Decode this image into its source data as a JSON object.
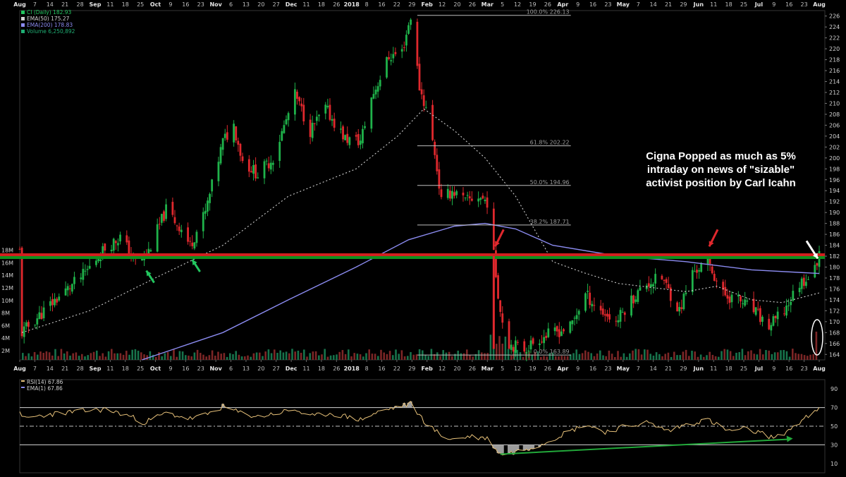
{
  "chart_data": [
    {
      "type": "candlestick",
      "panel": "price",
      "title": "CI (Daily) 182.93",
      "legend": [
        {
          "text": "CI (Daily) 182.93",
          "color": "#22c55e",
          "icon": "candle-icon"
        },
        {
          "text": "EMA(50) 175.27",
          "color": "#cfcfcf",
          "icon": "dotted-line-icon"
        },
        {
          "text": "EMA(200) 178.83",
          "color": "#8b8bf0",
          "icon": "line-icon"
        },
        {
          "text": "Volume 6,250,892",
          "color": "#1fae73",
          "icon": "bar-icon"
        }
      ],
      "legend_position": "top-left",
      "x_axis_labels": [
        "Aug",
        "7",
        "14",
        "21",
        "28",
        "Sep",
        "11",
        "18",
        "25",
        "Oct",
        "9",
        "16",
        "23",
        "Nov",
        "6",
        "13",
        "20",
        "27",
        "Dec",
        "11",
        "18",
        "26",
        "2018",
        "8",
        "16",
        "22",
        "29",
        "Feb",
        "12",
        "20",
        "26",
        "Mar",
        "5",
        "12",
        "19",
        "26",
        "Apr",
        "9",
        "16",
        "23",
        "May",
        "7",
        "14",
        "21",
        "29",
        "Jun",
        "11",
        "18",
        "25",
        "Jul",
        "9",
        "16",
        "23",
        "Aug"
      ],
      "x_range": [
        "2017-07-31",
        "2018-08-01"
      ],
      "y_axis": {
        "min": 163,
        "max": 227,
        "ticks": [
          164,
          166,
          168,
          170,
          172,
          174,
          176,
          178,
          180,
          182,
          184,
          186,
          188,
          190,
          192,
          194,
          196,
          198,
          200,
          202,
          204,
          206,
          208,
          210,
          212,
          214,
          216,
          218,
          220,
          222,
          224,
          226
        ],
        "position": "right"
      },
      "volume_axis": {
        "ticks": [
          "2M",
          "4M",
          "6M",
          "8M",
          "10M",
          "12M",
          "14M",
          "16M",
          "18M"
        ],
        "position": "left"
      },
      "close_series": [
        [
          "2017-08-01",
          168.0
        ],
        [
          "2017-08-15",
          173.5
        ],
        [
          "2017-08-29",
          178.5
        ],
        [
          "2017-09-08",
          183.5
        ],
        [
          "2017-09-15",
          185.5
        ],
        [
          "2017-09-22",
          181.0
        ],
        [
          "2017-09-27",
          182.0
        ],
        [
          "2017-10-06",
          190.5
        ],
        [
          "2017-10-13",
          187.0
        ],
        [
          "2017-10-17",
          184.0
        ],
        [
          "2017-10-24",
          190.0
        ],
        [
          "2017-11-01",
          203.0
        ],
        [
          "2017-11-06",
          206.0
        ],
        [
          "2017-11-10",
          199.5
        ],
        [
          "2017-11-17",
          197.0
        ],
        [
          "2017-11-24",
          200.0
        ],
        [
          "2017-12-04",
          211.5
        ],
        [
          "2017-12-11",
          205.0
        ],
        [
          "2017-12-18",
          209.0
        ],
        [
          "2017-12-27",
          203.5
        ],
        [
          "2018-01-03",
          203.0
        ],
        [
          "2018-01-08",
          211.0
        ],
        [
          "2018-01-16",
          218.5
        ],
        [
          "2018-01-22",
          219.5
        ],
        [
          "2018-01-26",
          226.0
        ],
        [
          "2018-01-30",
          213.0
        ],
        [
          "2018-02-02",
          209.0
        ],
        [
          "2018-02-06",
          201.0
        ],
        [
          "2018-02-09",
          192.0
        ],
        [
          "2018-02-14",
          194.0
        ],
        [
          "2018-02-20",
          192.0
        ],
        [
          "2018-02-26",
          193.0
        ],
        [
          "2018-03-02",
          192.0
        ],
        [
          "2018-03-05",
          182.0
        ],
        [
          "2018-03-08",
          172.0
        ],
        [
          "2018-03-12",
          166.0
        ],
        [
          "2018-03-19",
          165.0
        ],
        [
          "2018-03-26",
          167.0
        ],
        [
          "2018-04-02",
          168.0
        ],
        [
          "2018-04-09",
          169.0
        ],
        [
          "2018-04-16",
          175.0
        ],
        [
          "2018-04-23",
          172.0
        ],
        [
          "2018-04-30",
          170.0
        ],
        [
          "2018-05-07",
          174.0
        ],
        [
          "2018-05-14",
          177.0
        ],
        [
          "2018-05-21",
          178.0
        ],
        [
          "2018-05-29",
          172.0
        ],
        [
          "2018-06-04",
          179.0
        ],
        [
          "2018-06-11",
          181.0
        ],
        [
          "2018-06-18",
          175.0
        ],
        [
          "2018-06-25",
          174.0
        ],
        [
          "2018-07-02",
          172.0
        ],
        [
          "2018-07-09",
          169.0
        ],
        [
          "2018-07-16",
          172.0
        ],
        [
          "2018-07-23",
          177.0
        ],
        [
          "2018-07-26",
          178.0
        ],
        [
          "2018-07-30",
          179.5
        ],
        [
          "2018-08-01",
          182.93
        ]
      ],
      "ema50": [
        [
          "2017-08-01",
          168.0
        ],
        [
          "2017-09-01",
          172.0
        ],
        [
          "2017-10-01",
          178.0
        ],
        [
          "2017-11-01",
          184.0
        ],
        [
          "2017-12-01",
          193.0
        ],
        [
          "2018-01-01",
          198.0
        ],
        [
          "2018-01-20",
          204.0
        ],
        [
          "2018-02-01",
          209.0
        ],
        [
          "2018-02-15",
          205.0
        ],
        [
          "2018-03-01",
          200.0
        ],
        [
          "2018-03-15",
          193.0
        ],
        [
          "2018-04-01",
          181.0
        ],
        [
          "2018-04-15",
          179.0
        ],
        [
          "2018-05-01",
          177.0
        ],
        [
          "2018-06-01",
          175.5
        ],
        [
          "2018-06-15",
          176.5
        ],
        [
          "2018-07-01",
          174.0
        ],
        [
          "2018-07-15",
          173.5
        ],
        [
          "2018-08-01",
          175.27
        ]
      ],
      "ema200": [
        [
          "2017-09-25",
          163.0
        ],
        [
          "2017-11-01",
          168.0
        ],
        [
          "2017-12-01",
          174.0
        ],
        [
          "2018-01-01",
          180.0
        ],
        [
          "2018-01-25",
          185.0
        ],
        [
          "2018-02-15",
          187.5
        ],
        [
          "2018-03-01",
          188.0
        ],
        [
          "2018-03-15",
          187.0
        ],
        [
          "2018-04-01",
          184.0
        ],
        [
          "2018-05-01",
          182.0
        ],
        [
          "2018-06-01",
          181.0
        ],
        [
          "2018-07-01",
          179.5
        ],
        [
          "2018-08-01",
          178.83
        ]
      ],
      "fibonacci": [
        {
          "label": "100.0% 226.13",
          "value": 226.13
        },
        {
          "label": "61.8% 202.22",
          "value": 202.22
        },
        {
          "label": "50.0% 194.96",
          "value": 194.96
        },
        {
          "label": "38.2% 187.71",
          "value": 187.71
        },
        {
          "label": "0.0% 163.89",
          "value": 163.89
        }
      ],
      "fib_range": [
        "2018-01-29",
        "2018-03-08"
      ],
      "horizontal_lines": [
        {
          "value": 182.0,
          "color": "#d11f1f",
          "role": "resistance"
        },
        {
          "value": 182.0,
          "color": "#0f8f1f",
          "role": "support"
        }
      ],
      "annotation": {
        "lines": [
          "Cigna Popped as much as 5%",
          "intraday on news of \"sizable\"",
          "activist position by Carl Icahn"
        ]
      },
      "markers": [
        {
          "type": "green-arrow",
          "date": "2017-09-26",
          "value": 180.0
        },
        {
          "type": "green-arrow",
          "date": "2017-10-17",
          "value": 182.0
        },
        {
          "type": "red-arrow",
          "date": "2018-03-05",
          "value": 183.0
        },
        {
          "type": "red-arrow",
          "date": "2018-06-11",
          "value": 183.0
        },
        {
          "type": "white-arrow",
          "date": "2018-08-01",
          "value": 187.0
        },
        {
          "type": "white-ellipse",
          "date": "2018-08-01",
          "note": "volume spike"
        }
      ],
      "grid": false
    },
    {
      "type": "line",
      "panel": "indicator",
      "legend": [
        {
          "text": "RSI(14) 67.86",
          "color": "#e8c27a",
          "icon": "line-icon"
        },
        {
          "text": "EMA(1) 67.86",
          "color": "#8b8bf0",
          "icon": "line-icon"
        }
      ],
      "y_axis": {
        "min": 0,
        "max": 100,
        "ticks": [
          10,
          30,
          50,
          70,
          90
        ],
        "position": "right"
      },
      "reference_lines": [
        70,
        50,
        30
      ],
      "rsi": [
        [
          "2017-08-01",
          58
        ],
        [
          "2017-08-14",
          63
        ],
        [
          "2017-08-28",
          66
        ],
        [
          "2017-09-08",
          68
        ],
        [
          "2017-09-18",
          62
        ],
        [
          "2017-09-26",
          54
        ],
        [
          "2017-10-06",
          64
        ],
        [
          "2017-10-17",
          58
        ],
        [
          "2017-10-24",
          62
        ],
        [
          "2017-11-01",
          71
        ],
        [
          "2017-11-08",
          65
        ],
        [
          "2017-11-17",
          60
        ],
        [
          "2017-12-04",
          68
        ],
        [
          "2017-12-11",
          60
        ],
        [
          "2017-12-20",
          64
        ],
        [
          "2018-01-03",
          57
        ],
        [
          "2018-01-12",
          66
        ],
        [
          "2018-01-22",
          72
        ],
        [
          "2018-01-26",
          74
        ],
        [
          "2018-02-02",
          53
        ],
        [
          "2018-02-09",
          40
        ],
        [
          "2018-02-14",
          36
        ],
        [
          "2018-02-22",
          39
        ],
        [
          "2018-03-02",
          37
        ],
        [
          "2018-03-08",
          20
        ],
        [
          "2018-03-14",
          22
        ],
        [
          "2018-03-20",
          26
        ],
        [
          "2018-03-27",
          31
        ],
        [
          "2018-04-06",
          42
        ],
        [
          "2018-04-16",
          52
        ],
        [
          "2018-04-25",
          44
        ],
        [
          "2018-05-03",
          49
        ],
        [
          "2018-05-14",
          54
        ],
        [
          "2018-05-24",
          45
        ],
        [
          "2018-06-01",
          52
        ],
        [
          "2018-06-11",
          57
        ],
        [
          "2018-06-20",
          45
        ],
        [
          "2018-06-28",
          47
        ],
        [
          "2018-07-06",
          42
        ],
        [
          "2018-07-12",
          37
        ],
        [
          "2018-07-18",
          46
        ],
        [
          "2018-07-24",
          56
        ],
        [
          "2018-08-01",
          67.86
        ]
      ],
      "trend_line": [
        [
          "2018-03-08",
          20
        ],
        [
          "2018-07-18",
          36
        ]
      ],
      "trend_color": "#22a83a",
      "grid": false
    }
  ]
}
